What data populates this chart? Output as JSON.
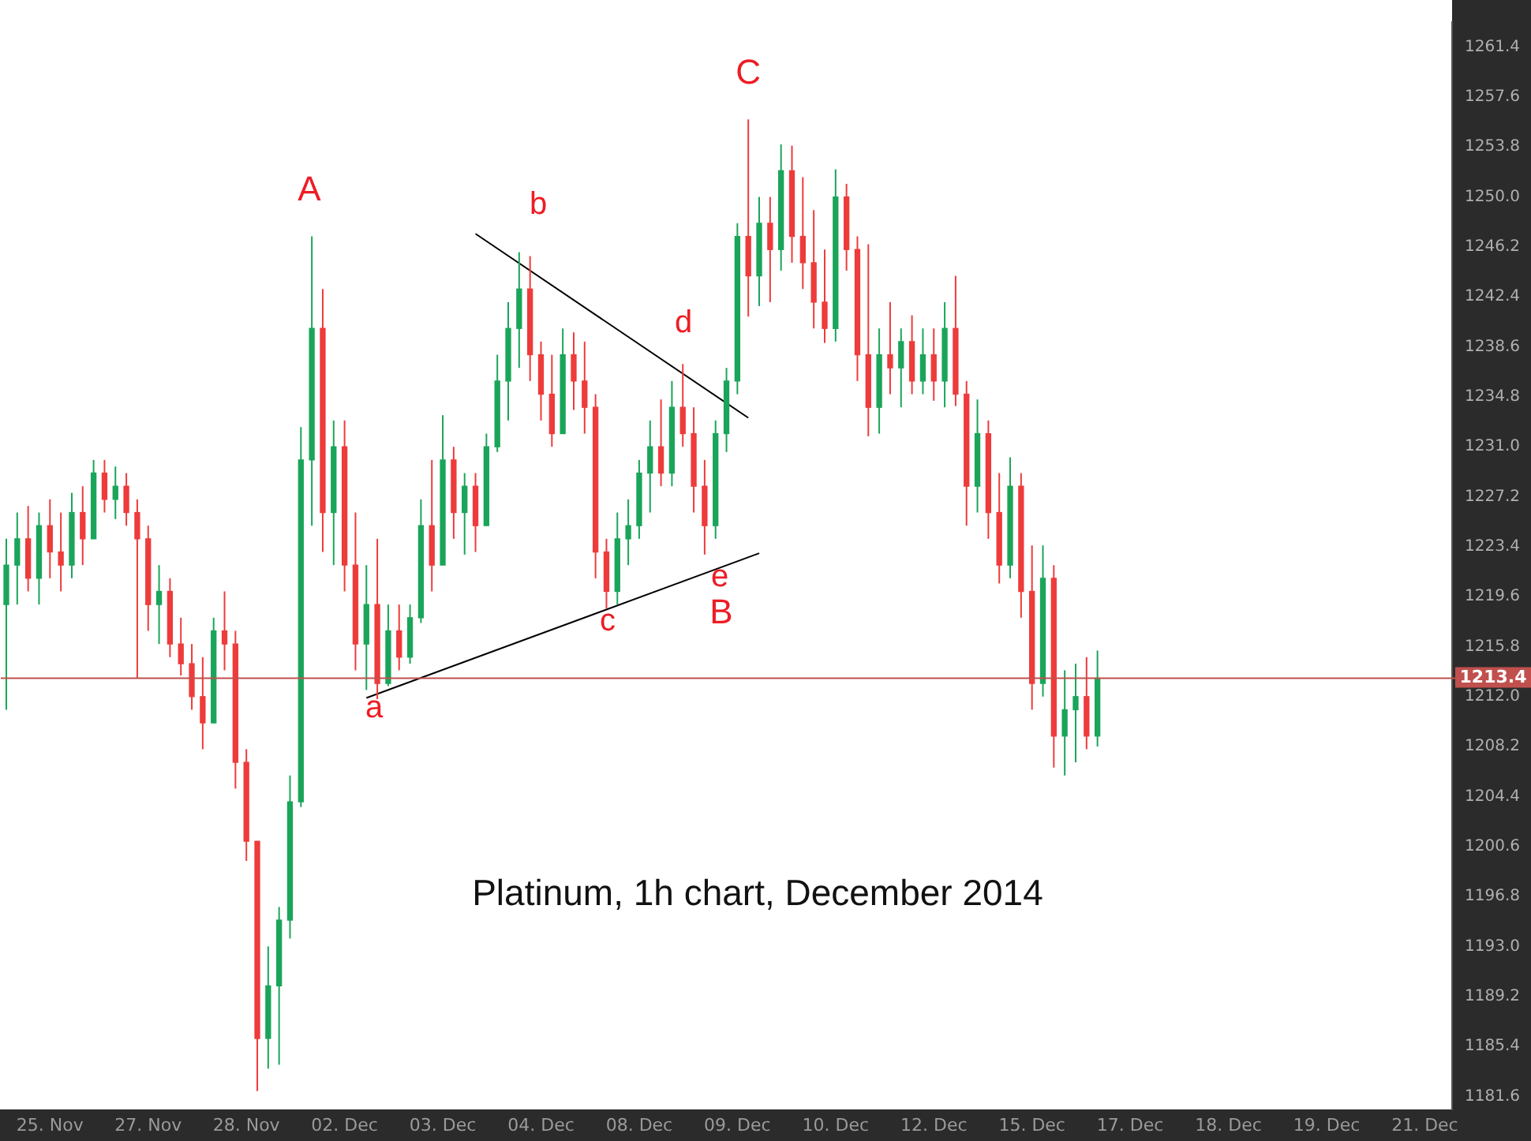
{
  "chart_data": {
    "type": "candlestick",
    "categories": [
      null,
      null,
      null,
      null,
      "25. Nov",
      null,
      null,
      null,
      null,
      null,
      null,
      null,
      null,
      "27. Nov",
      null,
      null,
      null,
      null,
      null,
      null,
      null,
      null,
      "28. Nov",
      null,
      null,
      null,
      null,
      null,
      null,
      null,
      null,
      "02. Dec",
      null,
      null,
      null,
      null,
      null,
      null,
      null,
      null,
      "03. Dec",
      null,
      null,
      null,
      null,
      null,
      null,
      null,
      null,
      "04. Dec",
      null,
      null,
      null,
      null,
      null,
      null,
      null,
      null,
      "08. Dec",
      null,
      null,
      null,
      null,
      null,
      null,
      null,
      null,
      "09. Dec",
      null,
      null,
      null,
      null,
      null,
      null,
      null,
      null,
      "10. Dec",
      null,
      null,
      null,
      null,
      null,
      null,
      null,
      null,
      "12. Dec",
      null,
      null,
      null,
      null,
      null,
      null,
      null,
      null,
      "15. Dec",
      null,
      null,
      null,
      null,
      null,
      null,
      null,
      null,
      "17. Dec",
      null,
      null,
      null,
      null,
      null,
      null,
      null,
      null,
      "18. Dec",
      null,
      null,
      null,
      null,
      null,
      null,
      null,
      null,
      "19. Dec",
      null,
      null,
      null,
      null,
      null,
      null,
      null,
      null,
      "21. Dec",
      null,
      null
    ],
    "ohlc": [
      [
        1219,
        1224,
        1211,
        1222
      ],
      [
        1222,
        1226,
        1219,
        1224
      ],
      [
        1224,
        1226.5,
        1220,
        1221
      ],
      [
        1221,
        1226,
        1219,
        1225
      ],
      [
        1225,
        1227,
        1221,
        1223
      ],
      [
        1223,
        1226,
        1220,
        1222
      ],
      [
        1222,
        1227.5,
        1221,
        1226
      ],
      [
        1226,
        1228,
        1222,
        1224
      ],
      [
        1224,
        1230,
        1224,
        1229
      ],
      [
        1229,
        1230,
        1226,
        1227
      ],
      [
        1227,
        1229.5,
        1225.5,
        1228
      ],
      [
        1228,
        1229,
        1225,
        1226
      ],
      [
        1226,
        1227,
        1213.4,
        1224
      ],
      [
        1224,
        1225,
        1217,
        1219
      ],
      [
        1219,
        1222,
        1216,
        1220
      ],
      [
        1220,
        1221,
        1215,
        1216
      ],
      [
        1216,
        1218,
        1213.6,
        1214.5
      ],
      [
        1214.5,
        1216,
        1211,
        1212
      ],
      [
        1212,
        1215,
        1208,
        1210
      ],
      [
        1210,
        1218,
        1210,
        1217
      ],
      [
        1217,
        1220,
        1214,
        1216
      ],
      [
        1216,
        1217,
        1205,
        1207
      ],
      [
        1207,
        1208,
        1199.5,
        1201
      ],
      [
        1201,
        1201,
        1182,
        1186
      ],
      [
        1186,
        1193,
        1183.7,
        1190
      ],
      [
        1190,
        1196,
        1184,
        1195
      ],
      [
        1195,
        1206,
        1193.6,
        1204
      ],
      [
        1204,
        1232.5,
        1203.6,
        1230
      ],
      [
        1230,
        1247,
        1225,
        1240
      ],
      [
        1240,
        1243,
        1223,
        1226
      ],
      [
        1226,
        1233,
        1222,
        1231
      ],
      [
        1231,
        1233,
        1220,
        1222
      ],
      [
        1222,
        1226,
        1214,
        1216
      ],
      [
        1216,
        1222,
        1212.5,
        1219
      ],
      [
        1219,
        1224,
        1211.8,
        1213
      ],
      [
        1213,
        1219,
        1212.8,
        1217
      ],
      [
        1217,
        1219,
        1214,
        1215
      ],
      [
        1215,
        1219,
        1214.5,
        1218
      ],
      [
        1218,
        1227,
        1217.6,
        1225
      ],
      [
        1225,
        1230,
        1220,
        1222
      ],
      [
        1222,
        1233.4,
        1222,
        1230
      ],
      [
        1230,
        1231,
        1224,
        1226
      ],
      [
        1226,
        1229,
        1222.8,
        1228
      ],
      [
        1228,
        1229,
        1223,
        1225
      ],
      [
        1225,
        1232,
        1225,
        1231
      ],
      [
        1231,
        1238,
        1230.6,
        1236
      ],
      [
        1236,
        1242,
        1233,
        1240
      ],
      [
        1240,
        1245.8,
        1237,
        1243
      ],
      [
        1243,
        1245.5,
        1236,
        1238
      ],
      [
        1238,
        1239,
        1233,
        1235
      ],
      [
        1235,
        1238,
        1231,
        1232
      ],
      [
        1232,
        1240,
        1232,
        1238
      ],
      [
        1238,
        1239.7,
        1233.8,
        1236
      ],
      [
        1236,
        1239,
        1232,
        1234
      ],
      [
        1234,
        1235,
        1221,
        1223
      ],
      [
        1223,
        1224,
        1218.7,
        1220
      ],
      [
        1220,
        1226,
        1219,
        1224
      ],
      [
        1224,
        1227,
        1222,
        1225
      ],
      [
        1225,
        1230,
        1224,
        1229
      ],
      [
        1229,
        1233,
        1226,
        1231
      ],
      [
        1231,
        1234.6,
        1228,
        1229
      ],
      [
        1229,
        1236,
        1228,
        1234
      ],
      [
        1234,
        1237.3,
        1231,
        1232
      ],
      [
        1232,
        1234,
        1226,
        1228
      ],
      [
        1228,
        1230,
        1222.8,
        1225
      ],
      [
        1225,
        1233,
        1224,
        1232
      ],
      [
        1232,
        1237,
        1230.6,
        1236
      ],
      [
        1236,
        1248,
        1235,
        1247
      ],
      [
        1247,
        1255.9,
        1240.9,
        1244
      ],
      [
        1244,
        1250,
        1241.7,
        1248
      ],
      [
        1248,
        1250,
        1242,
        1246
      ],
      [
        1246,
        1254,
        1244.4,
        1252
      ],
      [
        1252,
        1253.9,
        1245,
        1247
      ],
      [
        1247,
        1251.5,
        1243,
        1245
      ],
      [
        1245,
        1249,
        1240,
        1242
      ],
      [
        1242,
        1246,
        1238.9,
        1240
      ],
      [
        1240,
        1252.1,
        1239,
        1250
      ],
      [
        1250,
        1251,
        1244.4,
        1246
      ],
      [
        1246,
        1247,
        1236,
        1238
      ],
      [
        1238,
        1246.4,
        1231.8,
        1234
      ],
      [
        1234,
        1240,
        1232,
        1238
      ],
      [
        1238,
        1242,
        1235,
        1237
      ],
      [
        1237,
        1240,
        1234,
        1239
      ],
      [
        1239,
        1241,
        1235,
        1236
      ],
      [
        1236,
        1240,
        1235,
        1238
      ],
      [
        1238,
        1240,
        1234.5,
        1236
      ],
      [
        1236,
        1242,
        1234,
        1240
      ],
      [
        1240,
        1244,
        1234.1,
        1235
      ],
      [
        1235,
        1236,
        1225,
        1228
      ],
      [
        1228,
        1234.6,
        1226,
        1232
      ],
      [
        1232,
        1233,
        1224,
        1226
      ],
      [
        1226,
        1229,
        1220.6,
        1222
      ],
      [
        1222,
        1230.2,
        1221,
        1228
      ],
      [
        1228,
        1229,
        1218,
        1220
      ],
      [
        1220,
        1223.5,
        1211,
        1213
      ],
      [
        1213,
        1223.5,
        1212,
        1221
      ],
      [
        1221,
        1222,
        1206.6,
        1209
      ],
      [
        1209,
        1214,
        1206,
        1211
      ],
      [
        1211,
        1214.5,
        1207,
        1212
      ],
      [
        1212,
        1215,
        1208,
        1209
      ],
      [
        1209,
        1215.5,
        1208.2,
        1213.4
      ],
      null,
      null,
      null,
      null,
      null,
      null,
      null,
      null,
      null,
      null,
      null,
      null,
      null,
      null,
      null,
      null,
      null,
      null,
      null,
      null,
      null,
      null,
      null,
      null,
      null,
      null,
      null,
      null,
      null,
      null,
      null,
      null
    ],
    "series": [
      {
        "type": "line",
        "color": "#000000",
        "values": [
          null,
          null,
          null,
          null,
          null,
          null,
          null,
          null,
          null,
          null,
          null,
          null,
          null,
          null,
          null,
          null,
          null,
          null,
          null,
          null,
          null,
          null,
          null,
          null,
          null,
          null,
          null,
          null,
          null,
          null,
          null,
          null,
          null,
          null,
          null,
          null,
          null,
          null,
          null,
          null,
          null,
          null,
          null,
          1247.2,
          null,
          null,
          null,
          null,
          null,
          null,
          null,
          null,
          null,
          null,
          null,
          null,
          null,
          null,
          null,
          null,
          null,
          null,
          null,
          null,
          null,
          null,
          null,
          null,
          1233.2,
          null,
          null,
          null,
          null,
          null,
          null,
          null,
          null,
          null,
          null,
          null,
          null,
          null,
          null,
          null,
          null,
          null,
          null,
          null,
          null,
          null,
          null,
          null,
          null,
          null,
          null,
          null,
          null,
          null,
          null,
          null,
          null,
          null,
          null,
          null,
          null,
          null,
          null,
          null,
          null,
          null,
          null,
          null,
          null,
          null,
          null,
          null,
          null,
          null,
          null,
          null,
          null,
          null,
          null,
          null,
          null,
          null,
          null,
          null,
          null,
          null,
          null,
          null,
          null
        ]
      },
      {
        "type": "line",
        "color": "#000000",
        "values": [
          null,
          null,
          null,
          null,
          null,
          null,
          null,
          null,
          null,
          null,
          null,
          null,
          null,
          null,
          null,
          null,
          null,
          null,
          null,
          null,
          null,
          null,
          null,
          null,
          null,
          null,
          null,
          null,
          null,
          null,
          null,
          null,
          null,
          1211.9,
          null,
          null,
          null,
          null,
          null,
          null,
          null,
          null,
          null,
          null,
          null,
          null,
          null,
          null,
          null,
          null,
          null,
          null,
          null,
          null,
          null,
          null,
          null,
          null,
          null,
          null,
          null,
          null,
          null,
          null,
          null,
          null,
          null,
          null,
          null,
          1222.9,
          null,
          null,
          null,
          null,
          null,
          null,
          null,
          null,
          null,
          null,
          null,
          null,
          null,
          null,
          null,
          null,
          null,
          null,
          null,
          null,
          null,
          null,
          null,
          null,
          null,
          null,
          null,
          null,
          null,
          null,
          null,
          null,
          null,
          null,
          null,
          null,
          null,
          null,
          null,
          null,
          null,
          null,
          null,
          null,
          null,
          null,
          null,
          null,
          null,
          null,
          null,
          null,
          null,
          null,
          null,
          null,
          null,
          null,
          null,
          null,
          null,
          null,
          null
        ]
      }
    ],
    "ylim": [
      1180.6,
      1263.3
    ],
    "yticks": [
      1181.6,
      1185.4,
      1189.2,
      {
        "value": 1193,
        "label": "1193.0"
      },
      1196.8,
      1200.6,
      1204.4,
      1208.2,
      {
        "value": 1212,
        "label": "1212.0"
      },
      1215.8,
      1219.6,
      1223.4,
      1227.2,
      {
        "value": 1231,
        "label": "1231.0"
      },
      1234.8,
      1238.6,
      1242.4,
      1246.2,
      {
        "value": 1250,
        "label": "1250.0"
      },
      1253.8,
      1257.6,
      1261.4
    ],
    "ref_lines": [
      {
        "axis": "y",
        "value": 1213.4,
        "label": "1213.4",
        "color": "#c0504d"
      }
    ],
    "annotations": [
      "A",
      "b",
      "C",
      "d",
      "a",
      "c",
      "e",
      "B",
      "Platinum, 1h chart, December 2014"
    ]
  }
}
